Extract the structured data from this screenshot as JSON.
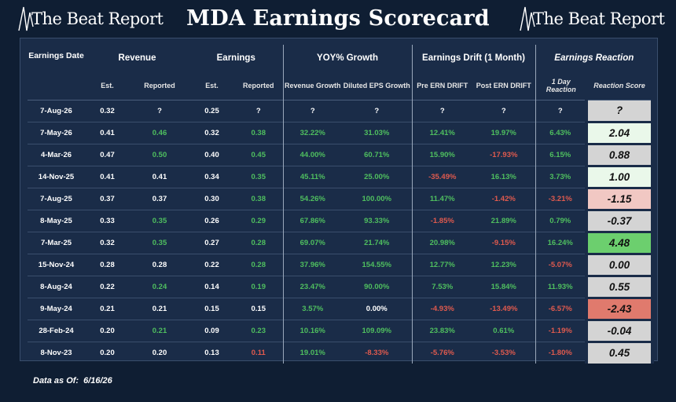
{
  "brand": {
    "left_logo": "The Beat Report",
    "right_logo": "The Beat Report"
  },
  "title": "MDA Earnings Scorecard",
  "headers": {
    "date": "Earnings Date",
    "revenue": "Revenue",
    "earnings": "Earnings",
    "growth": "YOY% Growth",
    "drift": "Earnings Drift (1 Month)",
    "reaction": "Earnings Reaction",
    "est": "Est.",
    "reported": "Reported",
    "rev_growth": "Revenue Growth",
    "eps_growth": "Diluted EPS Growth",
    "pre_drift": "Pre ERN DRIFT",
    "post_drift": "Post ERN DRIFT",
    "one_day": "1 Day Reaction",
    "score": "Reaction Score"
  },
  "rows": [
    {
      "date": "7-Aug-26",
      "rev_est": "0.32",
      "rev_rep": "?",
      "eps_est": "0.25",
      "eps_rep": "?",
      "rev_growth": "?",
      "eps_growth": "?",
      "pre_drift": "?",
      "post_drift": "?",
      "one_day": "?",
      "score": "?"
    },
    {
      "date": "7-May-26",
      "rev_est": "0.41",
      "rev_rep": "0.46",
      "eps_est": "0.32",
      "eps_rep": "0.38",
      "rev_growth": "32.22%",
      "eps_growth": "31.03%",
      "pre_drift": "12.41%",
      "post_drift": "19.97%",
      "one_day": "6.43%",
      "score": "2.04"
    },
    {
      "date": "4-Mar-26",
      "rev_est": "0.47",
      "rev_rep": "0.50",
      "eps_est": "0.40",
      "eps_rep": "0.45",
      "rev_growth": "44.00%",
      "eps_growth": "60.71%",
      "pre_drift": "15.90%",
      "post_drift": "-17.93%",
      "one_day": "6.15%",
      "score": "0.88"
    },
    {
      "date": "14-Nov-25",
      "rev_est": "0.41",
      "rev_rep": "0.41",
      "eps_est": "0.34",
      "eps_rep": "0.35",
      "rev_growth": "45.11%",
      "eps_growth": "25.00%",
      "pre_drift": "-35.49%",
      "post_drift": "16.13%",
      "one_day": "3.73%",
      "score": "1.00"
    },
    {
      "date": "7-Aug-25",
      "rev_est": "0.37",
      "rev_rep": "0.37",
      "eps_est": "0.30",
      "eps_rep": "0.38",
      "rev_growth": "54.26%",
      "eps_growth": "100.00%",
      "pre_drift": "11.47%",
      "post_drift": "-1.42%",
      "one_day": "-3.21%",
      "score": "-1.15"
    },
    {
      "date": "8-May-25",
      "rev_est": "0.33",
      "rev_rep": "0.35",
      "eps_est": "0.26",
      "eps_rep": "0.29",
      "rev_growth": "67.86%",
      "eps_growth": "93.33%",
      "pre_drift": "-1.85%",
      "post_drift": "21.89%",
      "one_day": "0.79%",
      "score": "-0.37"
    },
    {
      "date": "7-Mar-25",
      "rev_est": "0.32",
      "rev_rep": "0.35",
      "eps_est": "0.27",
      "eps_rep": "0.28",
      "rev_growth": "69.07%",
      "eps_growth": "21.74%",
      "pre_drift": "20.98%",
      "post_drift": "-9.15%",
      "one_day": "16.24%",
      "score": "4.48"
    },
    {
      "date": "15-Nov-24",
      "rev_est": "0.28",
      "rev_rep": "0.28",
      "eps_est": "0.22",
      "eps_rep": "0.28",
      "rev_growth": "37.96%",
      "eps_growth": "154.55%",
      "pre_drift": "12.77%",
      "post_drift": "12.23%",
      "one_day": "-5.07%",
      "score": "0.00"
    },
    {
      "date": "8-Aug-24",
      "rev_est": "0.22",
      "rev_rep": "0.24",
      "eps_est": "0.14",
      "eps_rep": "0.19",
      "rev_growth": "23.47%",
      "eps_growth": "90.00%",
      "pre_drift": "7.53%",
      "post_drift": "15.84%",
      "one_day": "11.93%",
      "score": "0.55"
    },
    {
      "date": "9-May-24",
      "rev_est": "0.21",
      "rev_rep": "0.21",
      "eps_est": "0.15",
      "eps_rep": "0.15",
      "rev_growth": "3.57%",
      "eps_growth": "0.00%",
      "pre_drift": "-4.93%",
      "post_drift": "-13.49%",
      "one_day": "-6.57%",
      "score": "-2.43"
    },
    {
      "date": "28-Feb-24",
      "rev_est": "0.20",
      "rev_rep": "0.21",
      "eps_est": "0.09",
      "eps_rep": "0.23",
      "rev_growth": "10.16%",
      "eps_growth": "109.09%",
      "pre_drift": "23.83%",
      "post_drift": "0.61%",
      "one_day": "-1.19%",
      "score": "-0.04"
    },
    {
      "date": "8-Nov-23",
      "rev_est": "0.20",
      "rev_rep": "0.20",
      "eps_est": "0.13",
      "eps_rep": "0.11",
      "rev_growth": "19.01%",
      "eps_growth": "-8.33%",
      "pre_drift": "-5.76%",
      "post_drift": "-3.53%",
      "one_day": "-1.80%",
      "score": "0.45"
    }
  ],
  "colors": {
    "positive": "#4fbf5f",
    "negative": "#e05a4e",
    "neutral_score": "#d4d4d4",
    "score_strong_pos": "#6ccf6e",
    "score_mild_pos": "#eaf8ea",
    "score_light_neg": "#f1c8c3",
    "score_strong_neg": "#e07a6d"
  },
  "footer": {
    "label": "Data as Of:",
    "date": "6/16/26"
  }
}
